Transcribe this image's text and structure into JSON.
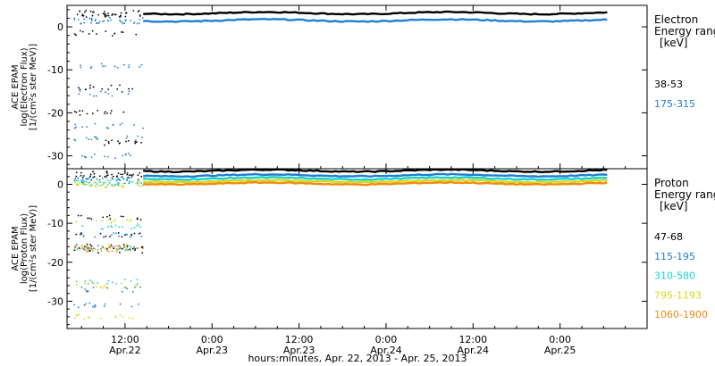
{
  "xlabel": "hours:minutes, Apr. 22, 2013 - Apr. 25, 2013",
  "x_ticks": [
    {
      "t": 12,
      "line1": "12:00",
      "line2": "Apr.22"
    },
    {
      "t": 24,
      "line1": "0:00",
      "line2": "Apr.23"
    },
    {
      "t": 36,
      "line1": "12:00",
      "line2": "Apr.23"
    },
    {
      "t": 48,
      "line1": "0:00",
      "line2": "Apr.24"
    },
    {
      "t": 60,
      "line1": "12:00",
      "line2": "Apr.24"
    },
    {
      "t": 72,
      "line1": "0:00",
      "line2": "Apr.25"
    }
  ],
  "chart_data": [
    {
      "type": "scatter",
      "panel": "electron",
      "ylabel_lines": [
        "ACE EPAM",
        "log(Electron Flux)",
        "[1/(cm²s ster MeV)]"
      ],
      "ylim": [
        -33,
        5
      ],
      "yticks": [
        0,
        -10,
        -20,
        -30
      ],
      "xlim": [
        4,
        84
      ],
      "legend_title": [
        "Electron",
        "Energy ranges",
        "[keV]"
      ],
      "series": [
        {
          "name": "38-53",
          "color": "#000000",
          "gap_values": [
            3.0,
            -1.5,
            -14,
            -20,
            -27
          ],
          "values": [
            3.2
          ]
        },
        {
          "name": "175-315",
          "color": "#1e7fd2",
          "gap_values": [
            1.5,
            -15.5,
            -9,
            -23,
            -26,
            -30
          ],
          "values": [
            1.5
          ]
        }
      ]
    },
    {
      "type": "scatter",
      "panel": "proton",
      "ylabel_lines": [
        "ACE EPAM",
        "log(Proton Flux)",
        "[1/(cm²s ster MeV)]"
      ],
      "ylim": [
        -37,
        4
      ],
      "yticks": [
        0,
        -10,
        -20,
        -30
      ],
      "xlim": [
        4,
        84
      ],
      "legend_title": [
        "Proton",
        "Energy ranges",
        "[keV]"
      ],
      "series": [
        {
          "name": "47-68",
          "color": "#000000",
          "gap_values": [
            2.5,
            -8.5,
            -13,
            -17,
            -16
          ],
          "values": [
            3.5
          ]
        },
        {
          "name": "115-195",
          "color": "#1e7fd2",
          "gap_values": [
            1.0,
            -13,
            -16,
            -27,
            -31
          ],
          "values": [
            2.3
          ]
        },
        {
          "name": "310-580",
          "color": "#18d2d2",
          "gap_values": [
            0.5,
            -11,
            -16.5,
            -25
          ],
          "values": [
            1.5
          ]
        },
        {
          "name": "795-1193",
          "color": "#d8d81a",
          "gap_values": [
            0.0,
            -9.5,
            -16,
            -26,
            -34
          ],
          "values": [
            0.8
          ]
        },
        {
          "name": "1060-1900",
          "color": "#f08a12",
          "gap_values": [
            -16.5
          ],
          "values": [
            0.2
          ]
        }
      ]
    }
  ]
}
